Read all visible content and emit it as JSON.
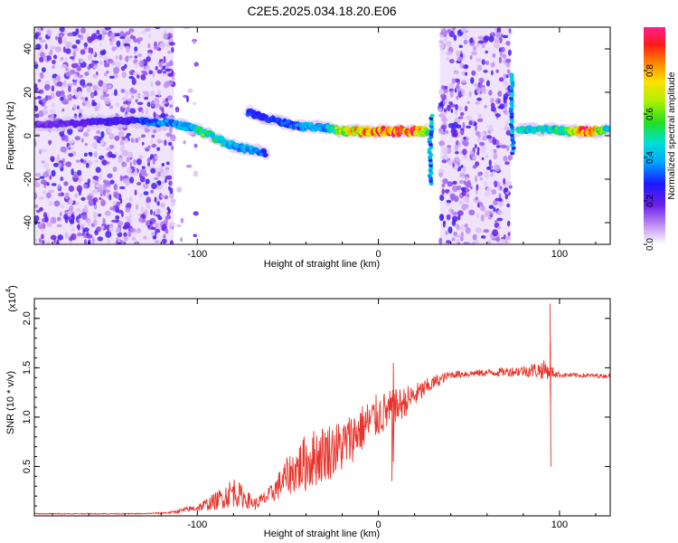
{
  "title": "C2E5.2025.034.18.20.E06",
  "chart_data": [
    {
      "type": "heatmap",
      "xlabel": "Height of straight line (km)",
      "ylabel": "Frequency (Hz)",
      "xlim": [
        -190,
        128
      ],
      "ylim": [
        -50,
        50
      ],
      "xticks": [
        -100,
        0,
        100
      ],
      "yticks": [
        -40,
        -20,
        0,
        20,
        40
      ],
      "colorbar": {
        "label": "Normalized spectral amplitude",
        "range": [
          0,
          1
        ],
        "ticks": [
          0.0,
          0.2,
          0.4,
          0.6,
          0.8
        ]
      },
      "noise_regions": [
        {
          "x_range": [
            -190,
            -113
          ],
          "density": 0.9
        },
        {
          "x_range": [
            -113,
            -100
          ],
          "density": 0.12
        },
        {
          "x_range": [
            34,
            73
          ],
          "density": 0.9
        }
      ],
      "ridge": [
        {
          "x": -190,
          "y": 5,
          "amp": 0.18
        },
        {
          "x": -160,
          "y": 6,
          "amp": 0.22
        },
        {
          "x": -138,
          "y": 7,
          "amp": 0.25
        },
        {
          "x": -125,
          "y": 6,
          "amp": 0.35
        },
        {
          "x": -115,
          "y": 6,
          "amp": 0.38
        },
        {
          "x": -105,
          "y": 4,
          "amp": 0.4
        },
        {
          "x": -98,
          "y": 2,
          "amp": 0.55
        },
        {
          "x": -90,
          "y": -1,
          "amp": 0.5
        },
        {
          "x": -82,
          "y": -4,
          "amp": 0.45
        },
        {
          "x": -74,
          "y": -6,
          "amp": 0.4
        },
        {
          "x": -62,
          "y": -8,
          "amp": 0.32
        }
      ],
      "ridge2": [
        {
          "x": -72,
          "y": 11,
          "amp": 0.3
        },
        {
          "x": -62,
          "y": 8,
          "amp": 0.3
        },
        {
          "x": -52,
          "y": 6,
          "amp": 0.32
        },
        {
          "x": -42,
          "y": 4,
          "amp": 0.38
        },
        {
          "x": -30,
          "y": 4,
          "amp": 0.4
        },
        {
          "x": -20,
          "y": 2,
          "amp": 0.7
        },
        {
          "x": -10,
          "y": 2,
          "amp": 0.8
        },
        {
          "x": 0,
          "y": 2,
          "amp": 0.9
        },
        {
          "x": 10,
          "y": 2,
          "amp": 0.95
        },
        {
          "x": 20,
          "y": 2,
          "amp": 0.9
        },
        {
          "x": 27,
          "y": 2,
          "amp": 0.6
        }
      ],
      "spike_x": [
        29,
        74
      ],
      "ridge3": [
        {
          "x": 77,
          "y": 2,
          "amp": 0.45
        },
        {
          "x": 85,
          "y": 3,
          "amp": 0.5
        },
        {
          "x": 95,
          "y": 3,
          "amp": 0.45
        },
        {
          "x": 105,
          "y": 2,
          "amp": 0.6
        },
        {
          "x": 115,
          "y": 2,
          "amp": 0.95
        },
        {
          "x": 122,
          "y": 2,
          "amp": 0.7
        },
        {
          "x": 128,
          "y": 3,
          "amp": 0.4
        }
      ]
    },
    {
      "type": "line",
      "xlabel": "Height of straight line (km)",
      "ylabel": "SNR (10 * v/v)",
      "yscale_label": "(x10",
      "yscale_exp": "4",
      "xlim": [
        -190,
        128
      ],
      "ylim": [
        0,
        2.2
      ],
      "xticks": [
        -100,
        0,
        100
      ],
      "yticks": [
        0.5,
        1.0,
        1.5,
        2.0
      ],
      "series": [
        {
          "color": "#e8352c",
          "envelope": [
            {
              "x": -190,
              "base": 0.02,
              "amp": 0.01
            },
            {
              "x": -130,
              "base": 0.02,
              "amp": 0.01
            },
            {
              "x": -115,
              "base": 0.03,
              "amp": 0.02
            },
            {
              "x": -100,
              "base": 0.07,
              "amp": 0.08
            },
            {
              "x": -90,
              "base": 0.12,
              "amp": 0.18
            },
            {
              "x": -80,
              "base": 0.2,
              "amp": 0.32
            },
            {
              "x": -75,
              "base": 0.16,
              "amp": 0.22
            },
            {
              "x": -68,
              "base": 0.1,
              "amp": 0.12
            },
            {
              "x": -60,
              "base": 0.18,
              "amp": 0.18
            },
            {
              "x": -50,
              "base": 0.35,
              "amp": 0.4
            },
            {
              "x": -40,
              "base": 0.45,
              "amp": 0.6
            },
            {
              "x": -30,
              "base": 0.55,
              "amp": 0.6
            },
            {
              "x": -20,
              "base": 0.62,
              "amp": 0.55
            },
            {
              "x": -10,
              "base": 0.8,
              "amp": 0.5
            },
            {
              "x": 0,
              "base": 0.95,
              "amp": 0.45
            },
            {
              "x": 8,
              "base": 1.02,
              "amp": 0.4
            },
            {
              "x": 20,
              "base": 1.18,
              "amp": 0.25
            },
            {
              "x": 30,
              "base": 1.32,
              "amp": 0.15
            },
            {
              "x": 40,
              "base": 1.42,
              "amp": 0.08
            },
            {
              "x": 60,
              "base": 1.44,
              "amp": 0.07
            },
            {
              "x": 80,
              "base": 1.45,
              "amp": 0.12
            },
            {
              "x": 92,
              "base": 1.45,
              "amp": 0.2
            },
            {
              "x": 100,
              "base": 1.42,
              "amp": 0.05
            },
            {
              "x": 128,
              "base": 1.41,
              "amp": 0.04
            }
          ],
          "spikes": [
            {
              "x": 95,
              "values": [
                1.3,
                2.15,
                0.5,
                1.75,
                1.0,
                1.5
              ]
            },
            {
              "x": 7.5,
              "values": [
                0.85,
                0.35,
                1.2
              ]
            },
            {
              "x": 8.5,
              "values": [
                1.55,
                0.55
              ]
            }
          ]
        }
      ]
    }
  ]
}
